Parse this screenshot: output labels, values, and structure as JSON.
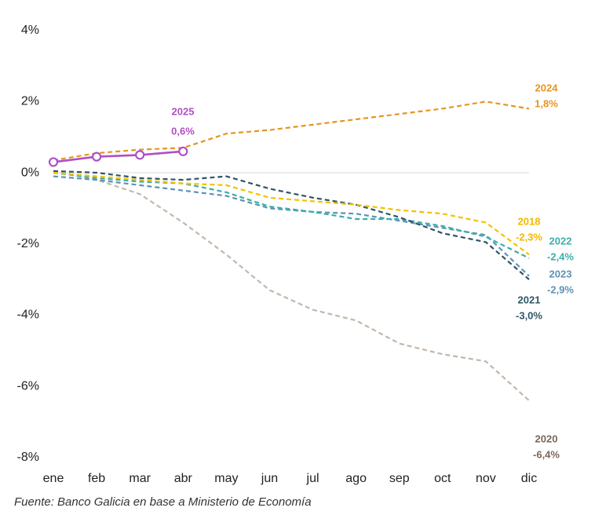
{
  "chart_data": {
    "type": "line",
    "categories": [
      "ene",
      "feb",
      "mar",
      "abr",
      "may",
      "jun",
      "jul",
      "ago",
      "sep",
      "oct",
      "nov",
      "dic"
    ],
    "series": [
      {
        "name": "2020",
        "color": "#C2B7AD",
        "dashed": true,
        "values": [
          0.05,
          -0.2,
          -0.6,
          -1.4,
          -2.3,
          -3.3,
          -3.85,
          -4.15,
          -4.8,
          -5.1,
          -5.3,
          -6.4
        ],
        "value_labels": [
          null,
          null,
          null,
          null,
          null,
          null,
          null,
          null,
          null,
          null,
          null,
          "-6,4%"
        ]
      },
      {
        "name": "2023",
        "color": "#5E93B2",
        "dashed": true,
        "values": [
          -0.1,
          -0.2,
          -0.35,
          -0.5,
          -0.65,
          -1.0,
          -1.1,
          -1.15,
          -1.35,
          -1.55,
          -1.75,
          -2.9
        ],
        "value_labels": [
          null,
          null,
          null,
          null,
          null,
          null,
          null,
          null,
          null,
          null,
          null,
          "-2,9%"
        ]
      },
      {
        "name": "2022",
        "color": "#3AAFA9",
        "dashed": true,
        "values": [
          0.0,
          -0.15,
          -0.25,
          -0.3,
          -0.55,
          -0.95,
          -1.1,
          -1.3,
          -1.3,
          -1.5,
          -1.8,
          -2.4
        ],
        "value_labels": [
          null,
          null,
          null,
          null,
          null,
          null,
          null,
          null,
          null,
          null,
          null,
          "-2,4%"
        ]
      },
      {
        "name": "2021",
        "color": "#2F5466",
        "dashed": true,
        "values": [
          0.05,
          0.0,
          -0.15,
          -0.2,
          -0.1,
          -0.45,
          -0.7,
          -0.9,
          -1.25,
          -1.7,
          -1.95,
          -3.0
        ],
        "value_labels": [
          null,
          null,
          null,
          null,
          null,
          null,
          null,
          null,
          null,
          null,
          null,
          "-3,0%"
        ]
      },
      {
        "name": "2018",
        "color": "#F2C200",
        "dashed": true,
        "values": [
          0.0,
          -0.1,
          -0.2,
          -0.3,
          -0.35,
          -0.7,
          -0.8,
          -0.9,
          -1.05,
          -1.15,
          -1.4,
          -2.3
        ],
        "value_labels": [
          null,
          null,
          null,
          null,
          null,
          null,
          null,
          null,
          null,
          null,
          null,
          "-2,3%"
        ]
      },
      {
        "name": "2024",
        "color": "#E8941F",
        "dashed": true,
        "values": [
          0.35,
          0.55,
          0.65,
          0.7,
          1.1,
          1.2,
          1.35,
          1.5,
          1.65,
          1.8,
          2.0,
          1.8
        ],
        "value_labels": [
          null,
          null,
          null,
          null,
          null,
          null,
          null,
          null,
          null,
          null,
          null,
          "1,8%"
        ]
      },
      {
        "name": "2025",
        "color": "#B04FC4",
        "dashed": false,
        "markers": true,
        "values": [
          0.3,
          0.45,
          0.5,
          0.6,
          null,
          null,
          null,
          null,
          null,
          null,
          null,
          null
        ],
        "value_labels": [
          null,
          null,
          null,
          "0,6%",
          null,
          null,
          null,
          null,
          null,
          null,
          null,
          null
        ]
      }
    ],
    "ylim": [
      -8,
      4
    ],
    "yticks": [
      {
        "value": 4,
        "label": "4%"
      },
      {
        "value": 2,
        "label": "2%"
      },
      {
        "value": 0,
        "label": "0%"
      },
      {
        "value": -2,
        "label": "-2%"
      },
      {
        "value": -4,
        "label": "-4%"
      },
      {
        "value": -6,
        "label": "-6%"
      },
      {
        "value": -8,
        "label": "-8%"
      }
    ],
    "zero_line": true,
    "source": "Fuente: Banco Galicia en base a Ministerio de Economía"
  }
}
